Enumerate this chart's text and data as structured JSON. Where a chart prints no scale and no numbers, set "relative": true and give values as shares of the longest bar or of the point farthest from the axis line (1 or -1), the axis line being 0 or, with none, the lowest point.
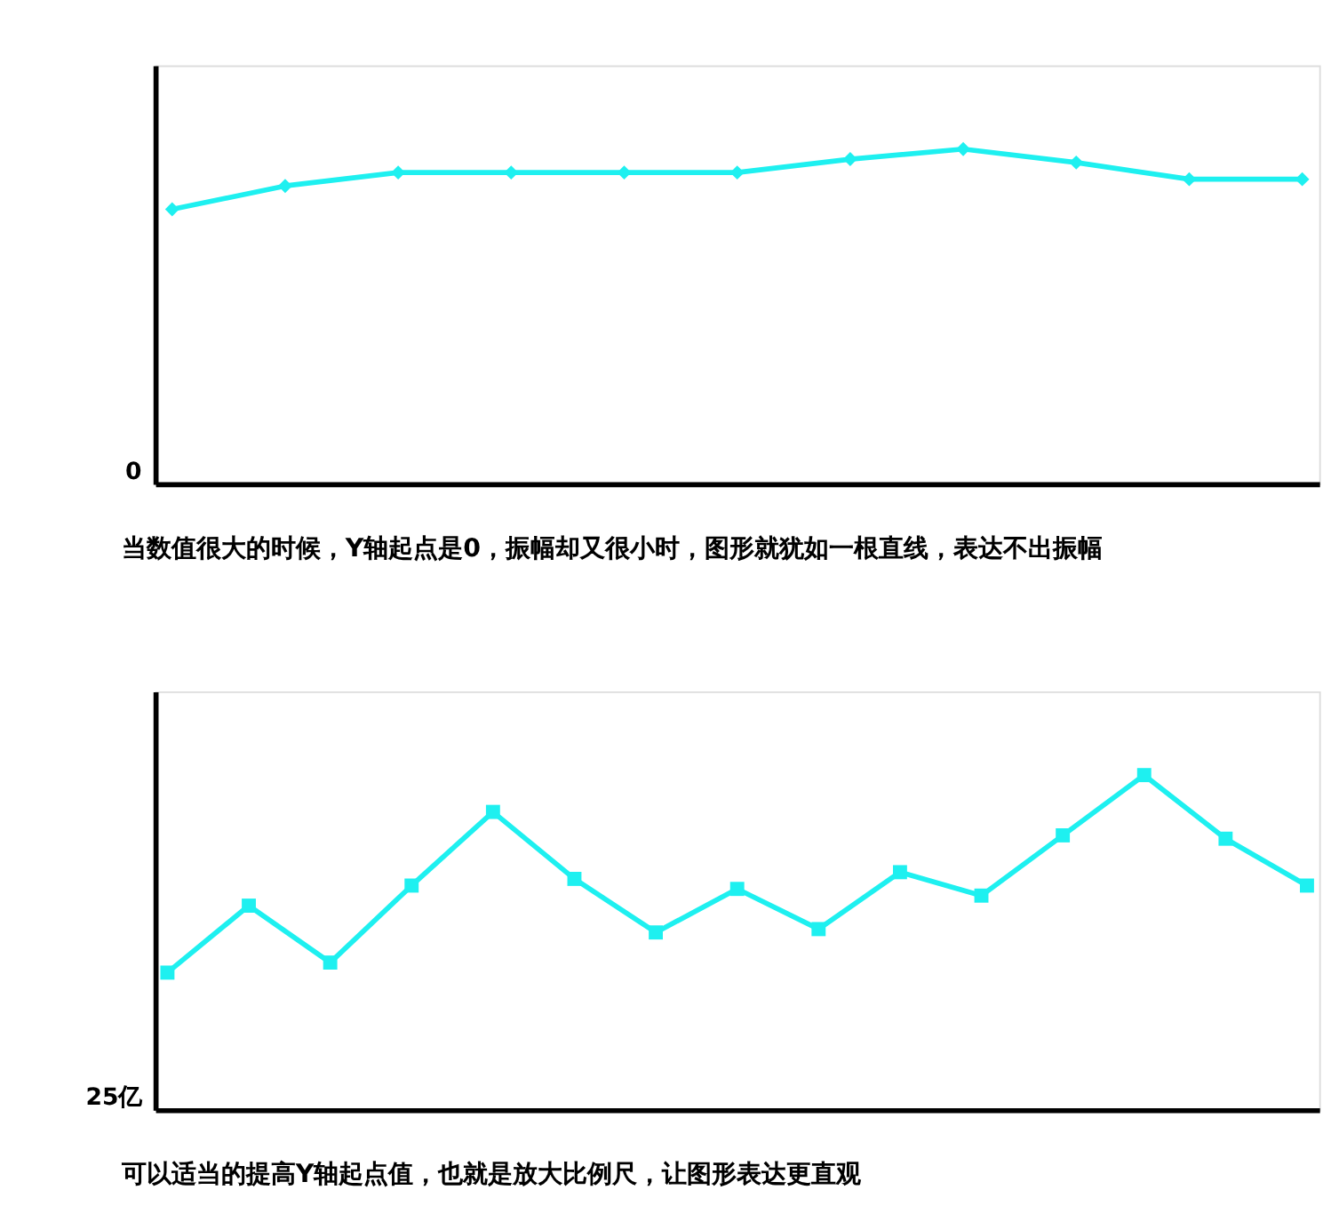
{
  "chart_data": [
    {
      "type": "line",
      "relative": true,
      "marker": "diamond",
      "line_style": "solid",
      "grid": false,
      "tick_labels": false,
      "categories": [
        null,
        null,
        null,
        null,
        null,
        null,
        null,
        null,
        null,
        null,
        null
      ],
      "series": [
        {
          "color": "#1ef0f0",
          "values": [
            0.82,
            0.89,
            0.93,
            0.93,
            0.93,
            0.93,
            0.97,
            1,
            0.96,
            0.91,
            0.91
          ]
        }
      ],
      "annotations": [
        "0",
        "当数值很大的时候，Y轴起点是0，振幅却又很小时，图形就犹如一根直线，表达不出振幅"
      ]
    },
    {
      "type": "line",
      "relative": true,
      "marker": "square",
      "line_style": "solid",
      "grid": false,
      "tick_labels": false,
      "categories": [
        null,
        null,
        null,
        null,
        null,
        null,
        null,
        null,
        null,
        null,
        null,
        null,
        null,
        null,
        null
      ],
      "series": [
        {
          "color": "#1ef0f0",
          "values": [
            0.41,
            0.61,
            0.44,
            0.67,
            0.89,
            0.69,
            0.53,
            0.66,
            0.54,
            0.71,
            0.64,
            0.82,
            1,
            0.81,
            0.67
          ]
        }
      ],
      "annotations": [
        "25亿",
        "可以适当的提高Y轴起点值，也就是放大比例尺，让图形表达更直观"
      ]
    }
  ]
}
